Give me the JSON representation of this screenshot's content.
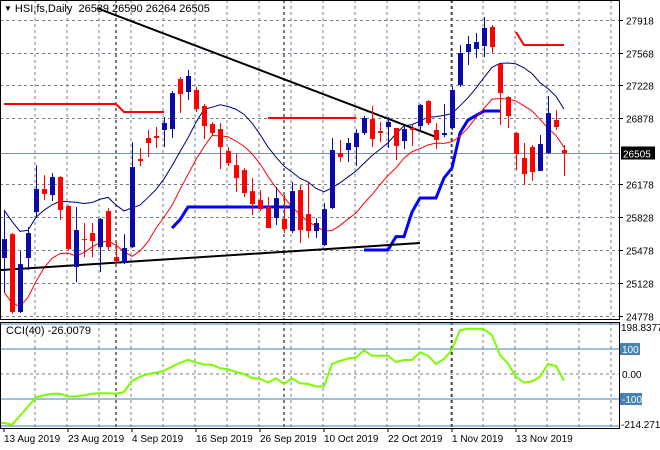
{
  "header": {
    "symbol": "HSI,fs,Daily",
    "open": "26539",
    "high": "26590",
    "low": "26264",
    "close": "26505"
  },
  "indicator": {
    "name": "CCI(40)",
    "value": "-26.0079",
    "max_label": "198.8377",
    "min_label": "-214.2710",
    "levels": [
      "100",
      "0.00",
      "-100"
    ]
  },
  "colors": {
    "bull": "#0a0aa8",
    "bear": "#ff0000",
    "ma_upper": "#000080",
    "ma_lower": "#ff0000",
    "support_step": "#0000ff",
    "resist_step": "#ff0000",
    "trendline": "#000000",
    "cci": "#7cfc00",
    "cci_levels": "#4682b4",
    "grid": "#708090",
    "price_tag": "#000000"
  },
  "chart_data": {
    "type": "candlestick",
    "title": "HSI,fs,Daily",
    "ylim": [
      24778,
      27918
    ],
    "y_ticks": [
      27918,
      27568,
      27228,
      26878,
      26178,
      25828,
      25478,
      25128,
      24778
    ],
    "current_price": 26505,
    "x_labels": [
      "13 Aug 2019",
      "23 Aug 2019",
      "4 Sep 2019",
      "16 Sep 2019",
      "26 Sep 2019",
      "10 Oct 2019",
      "22 Oct 2019",
      "1 Nov 2019",
      "13 Nov 2019"
    ],
    "grid": true,
    "candles_ohlc": [
      [
        25393,
        25902,
        25032,
        25594
      ],
      [
        25647,
        25660,
        24798,
        24820
      ],
      [
        24820,
        25467,
        24809,
        25329
      ],
      [
        25393,
        25722,
        25265,
        25658
      ],
      [
        25881,
        26379,
        25817,
        26125
      ],
      [
        26125,
        26273,
        26008,
        26072
      ],
      [
        26061,
        26294,
        25997,
        26252
      ],
      [
        26252,
        26263,
        25796,
        25902
      ],
      [
        25944,
        25955,
        25478,
        25488
      ],
      [
        25297,
        25934,
        25138,
        25690
      ],
      [
        25594,
        25764,
        25403,
        25584
      ],
      [
        25658,
        25764,
        25403,
        25573
      ],
      [
        25509,
        25817,
        25244,
        25807
      ],
      [
        25891,
        25923,
        25478,
        25509
      ],
      [
        25403,
        25562,
        25340,
        25361
      ],
      [
        25340,
        25647,
        25329,
        25499
      ],
      [
        25509,
        26623,
        25499,
        26358
      ],
      [
        26443,
        26560,
        26369,
        26422
      ],
      [
        26666,
        26751,
        26464,
        26613
      ],
      [
        26687,
        26783,
        26560,
        26666
      ],
      [
        26751,
        26889,
        26570,
        26825
      ],
      [
        26761,
        27165,
        26666,
        27143
      ],
      [
        27292,
        27313,
        26931,
        27133
      ],
      [
        27154,
        27387,
        27069,
        27324
      ],
      [
        27175,
        27207,
        26942,
        26973
      ],
      [
        27005,
        27027,
        26655,
        26793
      ],
      [
        26814,
        26836,
        26698,
        26719
      ],
      [
        26761,
        26825,
        26337,
        26570
      ],
      [
        26528,
        26570,
        26369,
        26401
      ],
      [
        26379,
        26496,
        26093,
        26241
      ],
      [
        26326,
        26347,
        26040,
        26082
      ],
      [
        26103,
        26241,
        25849,
        25966
      ],
      [
        26008,
        26114,
        25891,
        25912
      ],
      [
        25934,
        26040,
        25711,
        25711
      ],
      [
        25817,
        26146,
        25743,
        26029
      ],
      [
        25807,
        26061,
        25658,
        25700
      ],
      [
        25679,
        26199,
        25658,
        26103
      ],
      [
        26114,
        26167,
        25552,
        25690
      ],
      [
        25859,
        26188,
        25605,
        25679
      ],
      [
        25679,
        25817,
        25605,
        25764
      ],
      [
        25531,
        25976,
        25520,
        25912
      ],
      [
        25923,
        26666,
        25912,
        26539
      ],
      [
        26507,
        26645,
        26411,
        26464
      ],
      [
        26539,
        26666,
        26411,
        26613
      ],
      [
        26570,
        26761,
        26369,
        26719
      ],
      [
        26719,
        26899,
        26698,
        26878
      ],
      [
        26867,
        27005,
        26570,
        26655
      ],
      [
        26740,
        26836,
        26623,
        26719
      ],
      [
        26783,
        26889,
        26560,
        26836
      ],
      [
        26772,
        26772,
        26432,
        26581
      ],
      [
        26634,
        26804,
        26549,
        26761
      ],
      [
        26772,
        26804,
        26581,
        26751
      ],
      [
        26793,
        27027,
        26751,
        27016
      ],
      [
        27058,
        27069,
        26804,
        26825
      ],
      [
        26751,
        26825,
        26549,
        26645
      ],
      [
        26698,
        27027,
        26676,
        26719
      ],
      [
        26772,
        27207,
        26751,
        27175
      ],
      [
        27228,
        27653,
        27207,
        27568
      ],
      [
        27578,
        27748,
        27440,
        27663
      ],
      [
        27610,
        27780,
        27515,
        27684
      ],
      [
        27642,
        27950,
        27525,
        27833
      ],
      [
        27844,
        27865,
        27568,
        27631
      ],
      [
        27451,
        27451,
        26804,
        27143
      ],
      [
        27101,
        27111,
        26772,
        26899
      ],
      [
        26719,
        26730,
        26326,
        26496
      ],
      [
        26454,
        26613,
        26167,
        26284
      ],
      [
        26570,
        26592,
        26210,
        26305
      ],
      [
        26316,
        26698,
        26316,
        26602
      ],
      [
        26507,
        27111,
        26496,
        26931
      ],
      [
        26857,
        26963,
        26751,
        26783
      ],
      [
        26539,
        26590,
        26264,
        26505
      ]
    ],
    "resistance_steps": [
      [
        [
          1,
          27027
        ],
        [
          15,
          27027
        ],
        [
          16,
          26942
        ],
        [
          21,
          26942
        ]
      ],
      [
        [
          34,
          26878
        ],
        [
          45,
          26878
        ]
      ],
      [
        [
          65,
          27790
        ],
        [
          66,
          27653
        ],
        [
          71,
          27653
        ]
      ]
    ],
    "support_steps": [
      [
        [
          22,
          25711
        ],
        [
          23,
          25800
        ],
        [
          24,
          25934
        ],
        [
          37,
          25934
        ]
      ],
      [
        [
          46,
          25478
        ],
        [
          49,
          25478
        ],
        [
          50,
          25620
        ],
        [
          51,
          25620
        ],
        [
          52,
          25881
        ],
        [
          53,
          26030
        ],
        [
          55,
          26030
        ],
        [
          56,
          26242
        ],
        [
          57,
          26348
        ],
        [
          58,
          26720
        ],
        [
          59,
          26857
        ],
        [
          61,
          26952
        ],
        [
          63,
          26952
        ]
      ]
    ],
    "trendlines": [
      [
        [
          12.6,
          28045
        ],
        [
          55,
          26677
        ]
      ],
      [
        [
          0.5,
          25265
        ],
        [
          53,
          25552
        ]
      ]
    ],
    "cci": {
      "ylim": [
        -214.271,
        198.8377
      ],
      "levels": [
        100,
        0,
        -100
      ],
      "values": [
        -196,
        -203,
        -167,
        -130,
        -93,
        -85,
        -79,
        -79,
        -90,
        -90,
        -85,
        -79,
        -77,
        -77,
        -79,
        -72,
        -28,
        -11,
        0,
        5,
        13,
        29,
        45,
        57,
        46,
        38,
        37,
        23,
        19,
        8,
        0,
        -16,
        -19,
        -34,
        -17,
        -40,
        -17,
        -37,
        -40,
        -50,
        -50,
        40,
        52,
        62,
        66,
        95,
        73,
        73,
        73,
        48,
        56,
        56,
        87,
        73,
        40,
        60,
        98,
        175,
        181,
        181,
        179,
        155,
        75,
        42,
        -11,
        -34,
        -30,
        -11,
        40,
        32,
        -26.0079
      ]
    }
  }
}
